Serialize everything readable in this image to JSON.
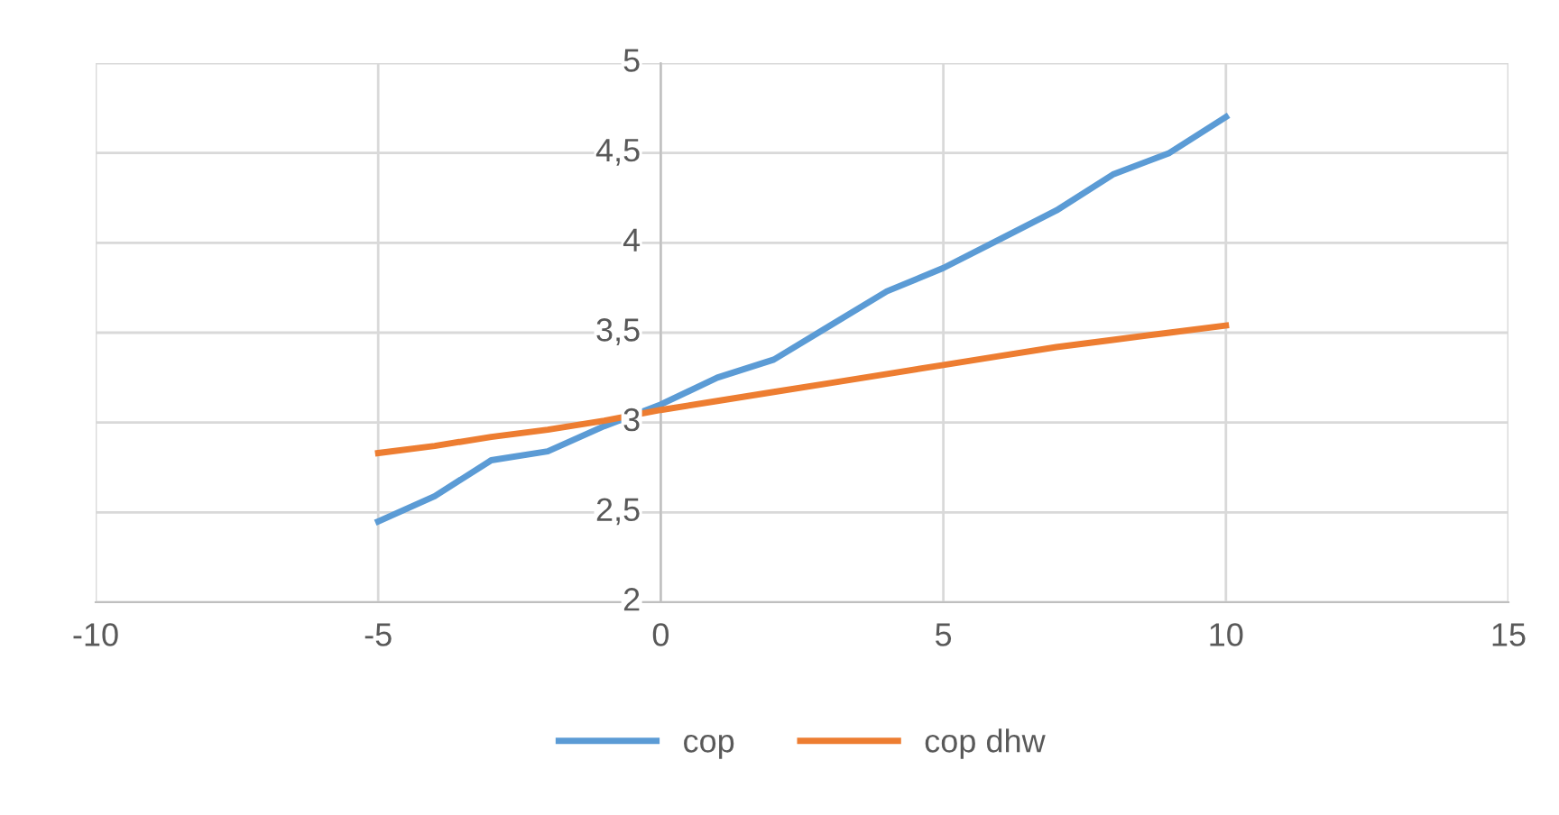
{
  "chart_data": {
    "type": "line",
    "x": [
      -5,
      -4,
      -3,
      -2,
      -1,
      0,
      1,
      2,
      3,
      4,
      5,
      6,
      7,
      8,
      9,
      10
    ],
    "series": [
      {
        "name": "cop",
        "color": "#5b9bd5",
        "values": [
          2.45,
          2.59,
          2.79,
          2.84,
          2.98,
          3.1,
          3.25,
          3.35,
          3.54,
          3.73,
          3.86,
          4.02,
          4.18,
          4.38,
          4.5,
          4.7
        ]
      },
      {
        "name": "cop dhw",
        "color": "#ed7d31",
        "values": [
          2.83,
          2.87,
          2.92,
          2.96,
          3.01,
          3.07,
          3.12,
          3.17,
          3.22,
          3.27,
          3.32,
          3.37,
          3.42,
          3.46,
          3.5,
          3.54
        ]
      }
    ],
    "xlim": [
      -10,
      15
    ],
    "xticks": [
      -10,
      -5,
      0,
      5,
      10,
      15
    ],
    "ylim": [
      2,
      5
    ],
    "yticks": [
      2,
      {
        "value": 2.5,
        "label": "2,5"
      },
      3,
      {
        "value": 3.5,
        "label": "3,5"
      },
      4,
      {
        "value": 4.5,
        "label": "4,5"
      },
      5
    ],
    "grid": true,
    "legend": "bottom",
    "marker": "none",
    "line_style": "solid"
  }
}
